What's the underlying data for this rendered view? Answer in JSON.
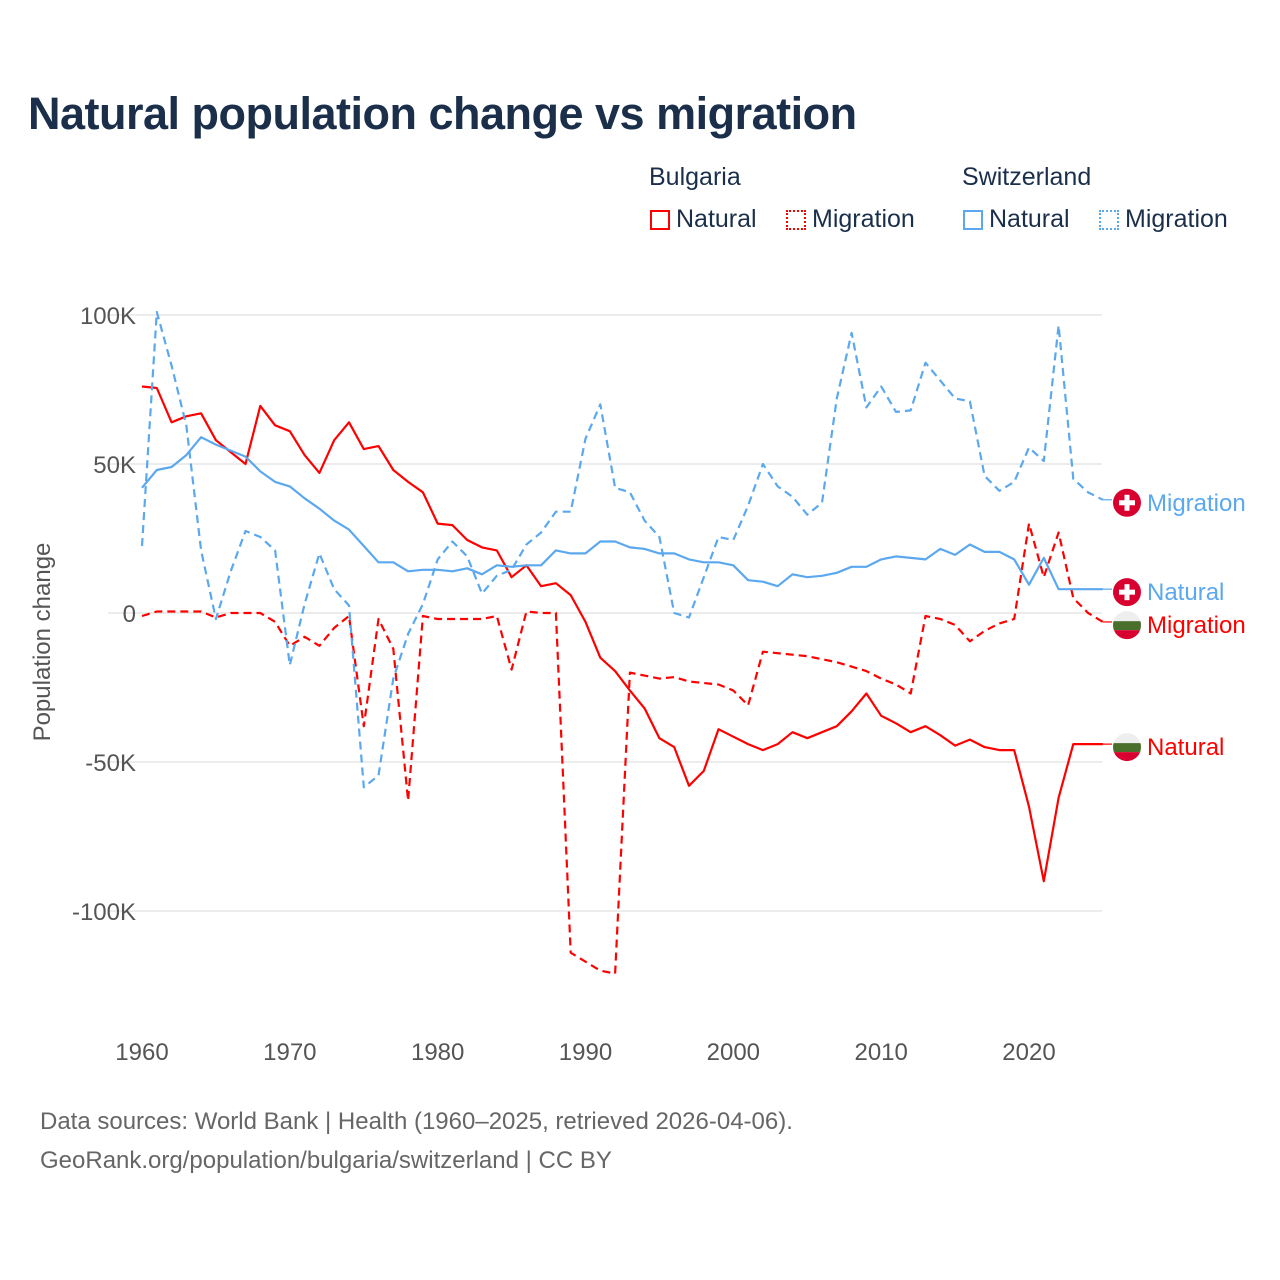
{
  "title": "Natural population change vs migration",
  "legend": {
    "groups": [
      {
        "name": "Bulgaria",
        "color": "#ff0000",
        "items": [
          "Natural",
          "Migration"
        ]
      },
      {
        "name": "Switzerland",
        "color": "#5ba8ef",
        "items": [
          "Natural",
          "Migration"
        ]
      }
    ]
  },
  "footer": {
    "line1": "Data sources: World Bank | Health (1960–2025, retrieved 2026-04-06).",
    "line2": "GeoRank.org/population/bulgaria/switzerland | CC BY"
  },
  "chart_data": {
    "type": "line",
    "title": "Natural population change vs migration",
    "xlabel": "",
    "ylabel": "Population change",
    "xlim": [
      1960,
      2025
    ],
    "ylim": [
      -130000,
      100000
    ],
    "y_ticks": [
      {
        "v": 100000,
        "label": "100K"
      },
      {
        "v": 50000,
        "label": "50K"
      },
      {
        "v": 0,
        "label": "0"
      },
      {
        "v": -50000,
        "label": "-50K"
      },
      {
        "v": -100000,
        "label": "-100K"
      }
    ],
    "x_ticks": [
      1960,
      1970,
      1980,
      1990,
      2000,
      2010,
      2020
    ],
    "grid": true,
    "start_year": 1960,
    "series": [
      {
        "name": "Bulgaria Natural",
        "label": "Natural",
        "country": "Bulgaria",
        "color": "#ff0000",
        "dash": false,
        "values_k": [
          76,
          75.5,
          64,
          66,
          67,
          58,
          54,
          50,
          69.5,
          63,
          61,
          53,
          47,
          58,
          64,
          55,
          56,
          48,
          44,
          40.5,
          30,
          29.5,
          24.5,
          22,
          21,
          12,
          16,
          9,
          10,
          6,
          -3,
          -15,
          -19.5,
          -26,
          -32,
          -42,
          -45,
          -58,
          -53,
          -39,
          -41.5,
          -44,
          -46,
          -44,
          -40,
          -42,
          -40,
          -38,
          -33,
          -27,
          -34.5,
          -37,
          -40,
          -38,
          -41,
          -44.5,
          -42.5,
          -45,
          -46,
          -46,
          -65,
          -90,
          -62,
          -44,
          -44,
          -44
        ]
      },
      {
        "name": "Bulgaria Migration",
        "label": "Migration",
        "country": "Bulgaria",
        "color": "#ff0000",
        "dash": true,
        "values_k": [
          -1,
          0.5,
          0.5,
          0.5,
          0.5,
          -1.5,
          0,
          0,
          0,
          -3,
          -11,
          -8,
          -11,
          -5,
          -1,
          -38,
          -2,
          -12,
          -63,
          -1,
          -2,
          -2,
          -2,
          -2,
          -1,
          -19,
          0.5,
          0,
          0,
          -114,
          -117,
          -120,
          -121,
          -20,
          -21,
          -22,
          -21.5,
          -23,
          -23.5,
          -24,
          -26,
          -31,
          -13,
          -13.5,
          -14,
          -14.5,
          -15.5,
          -16.5,
          -18,
          -19.5,
          -22,
          -24,
          -27,
          -1,
          -2,
          -4,
          -9.5,
          -6,
          -3.5,
          -2,
          30,
          12,
          27,
          5,
          0,
          -3
        ]
      },
      {
        "name": "Switzerland Natural",
        "label": "Natural",
        "country": "Switzerland",
        "color": "#5ba8ef",
        "dash": false,
        "values_k": [
          42,
          48,
          49,
          53,
          59,
          56.5,
          54.5,
          52.5,
          47.5,
          44,
          42.5,
          38.5,
          35,
          31,
          28,
          22.5,
          17,
          17,
          14,
          14.5,
          14.5,
          14,
          15,
          13,
          16,
          15.5,
          16,
          16,
          21,
          20,
          20,
          24,
          24,
          22,
          21.5,
          20,
          20,
          18,
          17,
          17,
          16,
          11,
          10.5,
          9,
          13,
          12,
          12.5,
          13.5,
          15.5,
          15.5,
          18,
          19,
          18.5,
          18,
          21.5,
          19.5,
          23,
          20.5,
          20.5,
          18,
          9.5,
          18.5,
          8,
          8,
          8,
          8
        ]
      },
      {
        "name": "Switzerland Migration",
        "label": "Migration",
        "country": "Switzerland",
        "color": "#5ba8ef",
        "dash": true,
        "values_k": [
          22.5,
          101,
          83,
          63,
          21,
          -2,
          14,
          27.5,
          25.5,
          21,
          -17.5,
          3,
          20,
          8,
          2.5,
          -58.5,
          -54.5,
          -22,
          -7,
          3,
          18,
          24,
          19,
          6.5,
          12.5,
          14.5,
          23,
          27,
          34,
          34,
          58.5,
          70,
          42,
          40.5,
          31,
          25.5,
          0,
          -1.5,
          12,
          25.5,
          24.5,
          36,
          50,
          42.5,
          39,
          33,
          37,
          72,
          94,
          69,
          76,
          67.5,
          68,
          84,
          78,
          72,
          71,
          46,
          41,
          44,
          55.5,
          51,
          96.5,
          45,
          40.5,
          38
        ]
      }
    ]
  }
}
